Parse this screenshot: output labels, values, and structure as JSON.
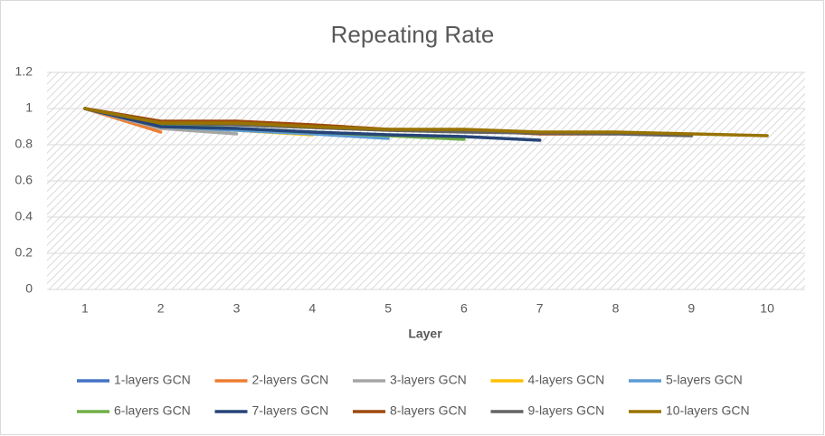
{
  "chart_data": {
    "type": "line",
    "title": "Repeating Rate",
    "x_label": "Layer",
    "categories": [
      1,
      2,
      3,
      4,
      5,
      6,
      7,
      8,
      9,
      10
    ],
    "ylim": [
      0,
      1.2
    ],
    "yticks": [
      0,
      0.2,
      0.4,
      0.6,
      0.8,
      1,
      1.2
    ],
    "grid": true,
    "legend": "bottom",
    "series": [
      {
        "name": "1-layers GCN",
        "color": "#4472c4",
        "values": [
          1,
          null,
          null,
          null,
          null,
          null,
          null,
          null,
          null,
          null
        ]
      },
      {
        "name": "2-layers GCN",
        "color": "#ed7d31",
        "values": [
          1,
          0.87,
          null,
          null,
          null,
          null,
          null,
          null,
          null,
          null
        ]
      },
      {
        "name": "3-layers GCN",
        "color": "#a5a5a5",
        "values": [
          1,
          0.89,
          0.86,
          null,
          null,
          null,
          null,
          null,
          null,
          null
        ]
      },
      {
        "name": "4-layers GCN",
        "color": "#ffc000",
        "values": [
          1,
          0.9,
          0.88,
          0.855,
          null,
          null,
          null,
          null,
          null,
          null
        ]
      },
      {
        "name": "5-layers GCN",
        "color": "#5b9bd5",
        "values": [
          1,
          0.9,
          0.88,
          0.86,
          0.835,
          null,
          null,
          null,
          null,
          null
        ]
      },
      {
        "name": "6-layers GCN",
        "color": "#70ad47",
        "values": [
          1,
          0.91,
          0.89,
          0.87,
          0.85,
          0.83,
          null,
          null,
          null,
          null
        ]
      },
      {
        "name": "7-layers GCN",
        "color": "#264478",
        "values": [
          1,
          0.9,
          0.89,
          0.87,
          0.855,
          0.845,
          0.825,
          null,
          null,
          null
        ]
      },
      {
        "name": "8-layers GCN",
        "color": "#9e480e",
        "values": [
          1,
          0.93,
          0.93,
          0.91,
          0.885,
          0.88,
          0.86,
          0.86,
          null,
          null
        ]
      },
      {
        "name": "9-layers GCN",
        "color": "#636363",
        "values": [
          1,
          0.92,
          0.91,
          0.895,
          0.88,
          0.87,
          0.865,
          0.86,
          0.85,
          null
        ]
      },
      {
        "name": "10-layers GCN",
        "color": "#997300",
        "values": [
          1,
          0.92,
          0.92,
          0.9,
          0.885,
          0.885,
          0.87,
          0.87,
          0.86,
          0.85
        ]
      }
    ]
  }
}
